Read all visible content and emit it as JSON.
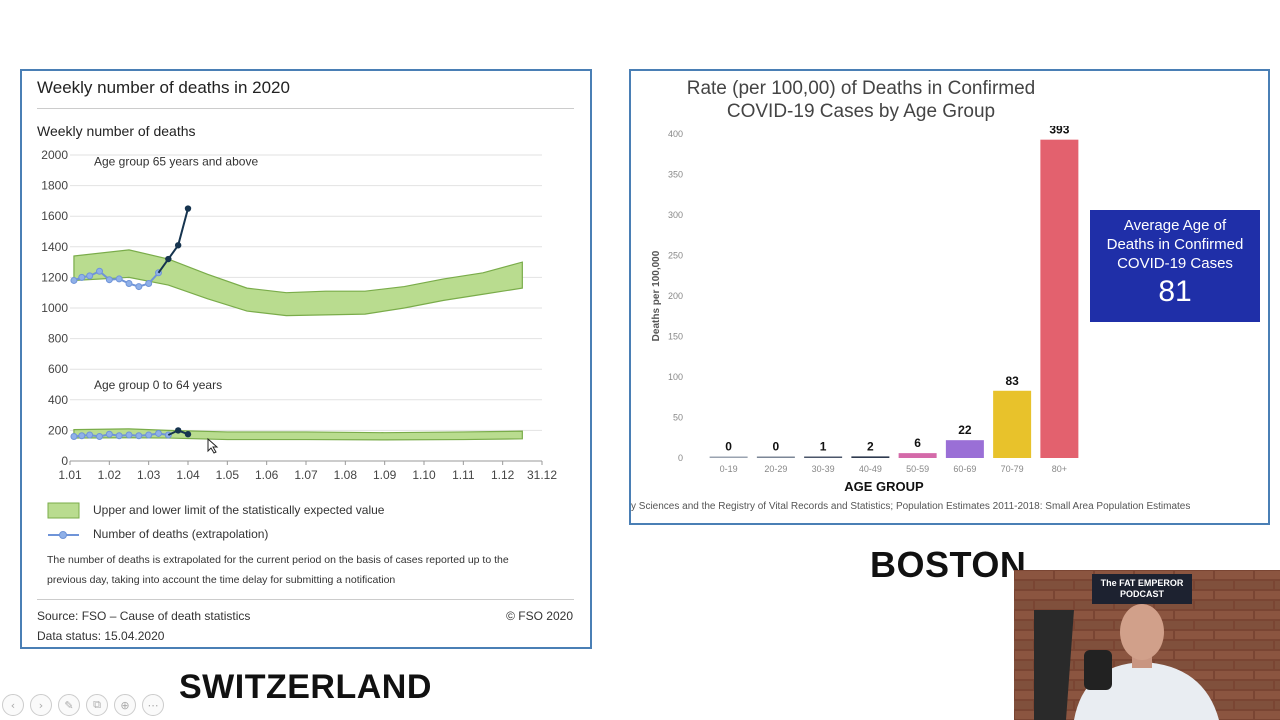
{
  "left_panel": {
    "title": "Weekly number of deaths in 2020",
    "subtitle": "Weekly number of deaths",
    "legend_band": "Upper and lower limit of the statistically expected value",
    "legend_line": "Number of deaths (extrapolation)",
    "note_line1": "The number of deaths is extrapolated for the current period on the basis of cases reported up to the",
    "note_line2": "previous day, taking into account the time delay for submitting a notification",
    "source": "Source: FSO – Cause of death statistics",
    "copyright": "© FSO 2020",
    "data_status": "Data status: 15.04.2020"
  },
  "right_panel": {
    "title_line1": "Rate (per 100,00) of Deaths in Confirmed",
    "title_line2": "COVID-19 Cases by Age Group",
    "source_text": "y Sciences and the Registry of Vital Records and Statistics; Population Estimates 2011-2018: Small Area Population Estimates",
    "callout_line1": "Average Age of",
    "callout_line2": "Deaths in Confirmed",
    "callout_line3": "COVID-19 Cases",
    "callout_value": "81"
  },
  "labels": {
    "switzerland": "SWITZERLAND",
    "boston": "BOSTON",
    "podcast_logo": "The FAT EMPEROR PODCAST"
  },
  "toolbar_icons": [
    "prev-icon",
    "next-icon",
    "pen-icon",
    "copy-icon",
    "zoom-icon",
    "more-icon"
  ],
  "chart_data": [
    {
      "type": "line",
      "title": "Weekly number of deaths",
      "x_ticks": [
        "1.01",
        "1.02",
        "1.03",
        "1.04",
        "1.05",
        "1.06",
        "1.07",
        "1.08",
        "1.09",
        "1.10",
        "1.11",
        "1.12",
        "31.12"
      ],
      "ylim": [
        0,
        2000
      ],
      "y_ticks": [
        0,
        200,
        400,
        600,
        800,
        1000,
        1200,
        1400,
        1600,
        1800,
        2000
      ],
      "grid": true,
      "panels": [
        {
          "name": "Age group 65 years and above",
          "band_upper": [
            [
              0.1,
              1340
            ],
            [
              1.5,
              1380
            ],
            [
              2.5,
              1320
            ],
            [
              3.5,
              1220
            ],
            [
              4.5,
              1130
            ],
            [
              5.5,
              1100
            ],
            [
              6.5,
              1110
            ],
            [
              7.5,
              1110
            ],
            [
              8.5,
              1140
            ],
            [
              9.5,
              1190
            ],
            [
              10.5,
              1230
            ],
            [
              11.5,
              1300
            ]
          ],
          "band_lower": [
            [
              0.1,
              1180
            ],
            [
              1.5,
              1200
            ],
            [
              2.5,
              1150
            ],
            [
              3.5,
              1060
            ],
            [
              4.5,
              980
            ],
            [
              5.5,
              950
            ],
            [
              6.5,
              955
            ],
            [
              7.5,
              960
            ],
            [
              8.5,
              1000
            ],
            [
              9.5,
              1050
            ],
            [
              10.5,
              1090
            ],
            [
              11.5,
              1130
            ]
          ],
          "observed": [
            [
              0.1,
              1180
            ],
            [
              0.3,
              1200
            ],
            [
              0.5,
              1210
            ],
            [
              0.75,
              1240
            ],
            [
              1.0,
              1185
            ],
            [
              1.25,
              1190
            ],
            [
              1.5,
              1160
            ],
            [
              1.75,
              1140
            ],
            [
              2.0,
              1160
            ],
            [
              2.25,
              1230
            ]
          ],
          "observed_recent": [
            [
              2.25,
              1230
            ],
            [
              2.5,
              1320
            ],
            [
              2.75,
              1410
            ],
            [
              3.0,
              1650
            ]
          ]
        },
        {
          "name": "Age group 0 to 64 years",
          "band_upper": [
            [
              0.1,
              205
            ],
            [
              1.5,
              210
            ],
            [
              2.5,
              200
            ],
            [
              4,
              190
            ],
            [
              6,
              190
            ],
            [
              8,
              185
            ],
            [
              10,
              190
            ],
            [
              11.5,
              195
            ]
          ],
          "band_lower": [
            [
              0.1,
              150
            ],
            [
              1.5,
              152
            ],
            [
              2.5,
              150
            ],
            [
              4,
              140
            ],
            [
              6,
              140
            ],
            [
              8,
              138
            ],
            [
              10,
              140
            ],
            [
              11.5,
              145
            ]
          ],
          "observed": [
            [
              0.1,
              160
            ],
            [
              0.3,
              165
            ],
            [
              0.5,
              170
            ],
            [
              0.75,
              160
            ],
            [
              1.0,
              175
            ],
            [
              1.25,
              165
            ],
            [
              1.5,
              170
            ],
            [
              1.75,
              165
            ],
            [
              2.0,
              170
            ],
            [
              2.25,
              180
            ],
            [
              2.5,
              170
            ]
          ],
          "observed_recent": [
            [
              2.5,
              170
            ],
            [
              2.75,
              200
            ],
            [
              3.0,
              175
            ]
          ]
        }
      ]
    },
    {
      "type": "bar",
      "title": "Rate (per 100,00) of Deaths in Confirmed COVID-19 Cases by Age Group",
      "xlabel": "AGE GROUP",
      "ylabel": "Deaths per 100,000",
      "categories": [
        "0-19",
        "20-29",
        "30-39",
        "40-49",
        "50-59",
        "60-69",
        "70-79",
        "80+"
      ],
      "values": [
        0,
        0,
        1,
        2,
        6,
        22,
        83,
        393
      ],
      "colors": [
        "#9aa3b0",
        "#7b8696",
        "#4b566a",
        "#2e3a4f",
        "#d46aa9",
        "#9a6fd6",
        "#e8c22b",
        "#e3616e"
      ],
      "ylim": [
        0,
        400
      ],
      "y_ticks": [
        0,
        50,
        100,
        150,
        200,
        250,
        300,
        350,
        400
      ]
    }
  ]
}
